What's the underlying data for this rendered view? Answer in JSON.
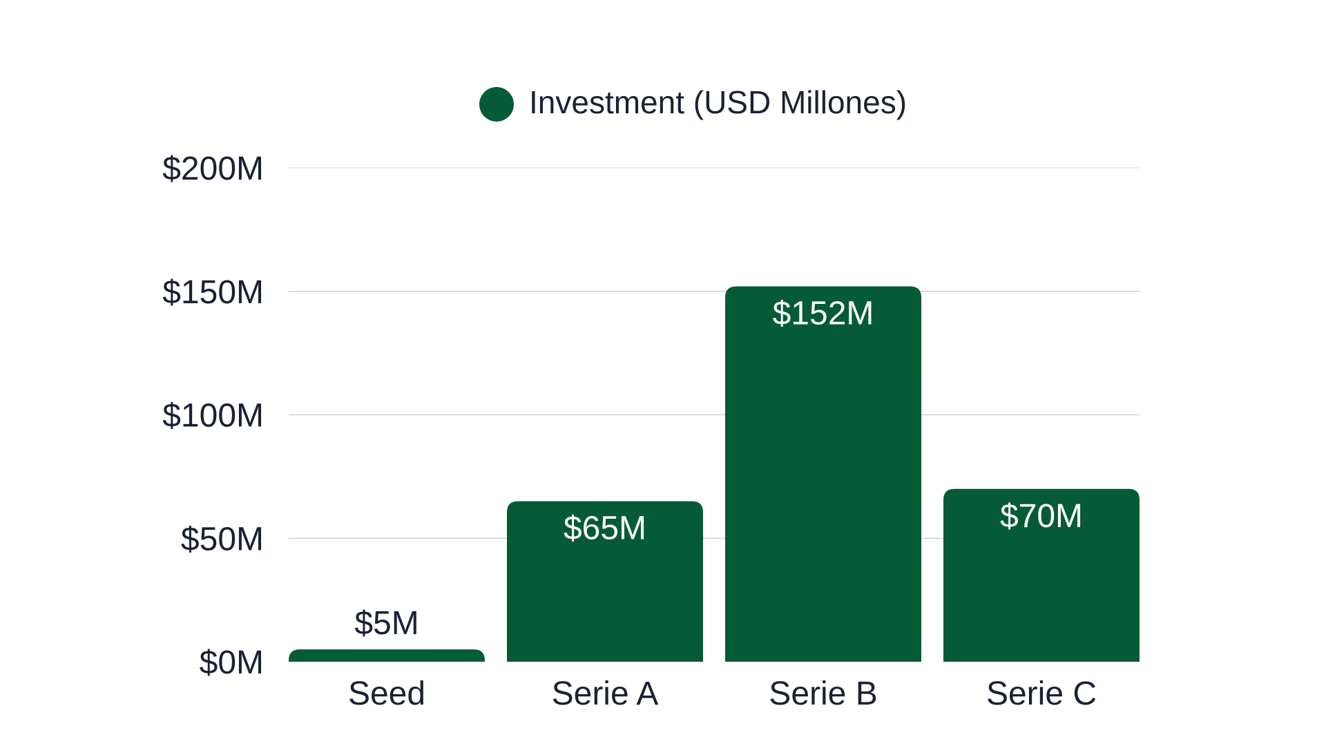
{
  "chart_data": {
    "type": "bar",
    "categories": [
      "Seed",
      "Serie A",
      "Serie B",
      "Serie C"
    ],
    "series": [
      {
        "name": "Investment (USD Millones)",
        "values": [
          5,
          65,
          152,
          70
        ],
        "data_labels": [
          "$5M",
          "$65M",
          "$152M",
          "$70M"
        ],
        "color": "#055b36"
      }
    ],
    "ylim": [
      0,
      200
    ],
    "yticks": [
      0,
      50,
      100,
      150,
      200
    ],
    "ytick_labels": [
      "$0M",
      "$50M",
      "$100M",
      "$150M",
      "$200M"
    ],
    "xlabel": "",
    "ylabel": "",
    "grid": true,
    "legend_position": "top-center"
  },
  "colors": {
    "bar": "#055b36",
    "text": "#1c2033",
    "label_inside": "#ffffff",
    "grid": "#cfd2d6"
  }
}
